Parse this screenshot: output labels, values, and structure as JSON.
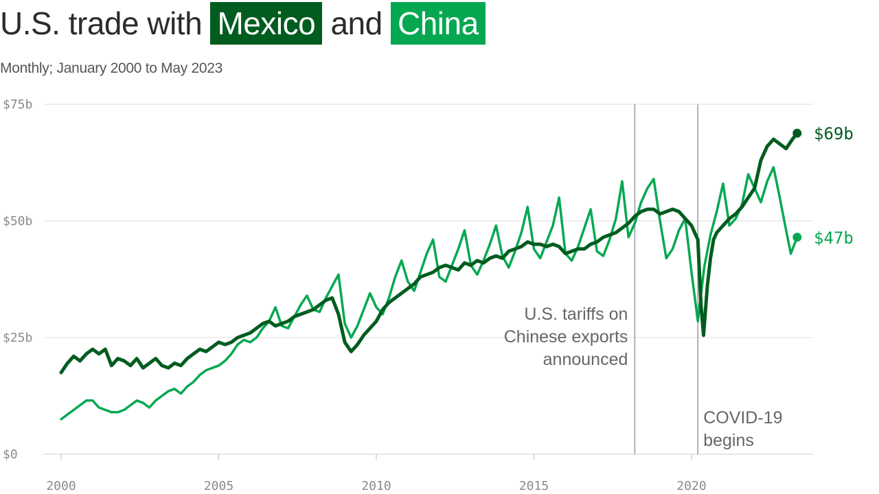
{
  "title": {
    "part1": "U.S. trade with",
    "mexico": "Mexico",
    "part2": "and",
    "china": "China"
  },
  "subtitle": "Monthly; January 2000 to May 2023",
  "colors": {
    "mexico": "#005c1f",
    "china": "#05a851",
    "grid": "#dddddd",
    "annotation_line": "#9a9a9a",
    "text": "#2b2b2b"
  },
  "chart_data": {
    "type": "line",
    "x_unit": "year",
    "xlim": [
      2000,
      2023.42
    ],
    "ylim": [
      0,
      75
    ],
    "grid": "horizontal",
    "y_ticks": [
      {
        "value": 0,
        "label": "$0"
      },
      {
        "value": 25,
        "label": "$25b"
      },
      {
        "value": 50,
        "label": "$50b"
      },
      {
        "value": 75,
        "label": "$75b"
      }
    ],
    "x_ticks": [
      {
        "value": 2000,
        "label": "2000"
      },
      {
        "value": 2005,
        "label": "2005"
      },
      {
        "value": 2010,
        "label": "2010"
      },
      {
        "value": 2015,
        "label": "2015"
      },
      {
        "value": 2020,
        "label": "2020"
      }
    ],
    "series": [
      {
        "key": "mexico",
        "name": "Mexico",
        "color": "#005c1f",
        "end_label": "$69b",
        "points": [
          [
            2000.0,
            17.5
          ],
          [
            2000.2,
            19.5
          ],
          [
            2000.4,
            21.0
          ],
          [
            2000.6,
            20.0
          ],
          [
            2000.8,
            21.5
          ],
          [
            2001.0,
            22.5
          ],
          [
            2001.2,
            21.5
          ],
          [
            2001.4,
            22.5
          ],
          [
            2001.6,
            19.0
          ],
          [
            2001.8,
            20.5
          ],
          [
            2002.0,
            20.0
          ],
          [
            2002.2,
            19.0
          ],
          [
            2002.4,
            20.5
          ],
          [
            2002.6,
            18.5
          ],
          [
            2002.8,
            19.5
          ],
          [
            2003.0,
            20.5
          ],
          [
            2003.2,
            19.0
          ],
          [
            2003.4,
            18.5
          ],
          [
            2003.6,
            19.5
          ],
          [
            2003.8,
            19.0
          ],
          [
            2004.0,
            20.5
          ],
          [
            2004.2,
            21.5
          ],
          [
            2004.4,
            22.5
          ],
          [
            2004.6,
            22.0
          ],
          [
            2004.8,
            23.0
          ],
          [
            2005.0,
            24.0
          ],
          [
            2005.2,
            23.5
          ],
          [
            2005.4,
            24.0
          ],
          [
            2005.6,
            25.0
          ],
          [
            2005.8,
            25.5
          ],
          [
            2006.0,
            26.0
          ],
          [
            2006.2,
            27.0
          ],
          [
            2006.4,
            28.0
          ],
          [
            2006.6,
            28.5
          ],
          [
            2006.8,
            27.5
          ],
          [
            2007.0,
            28.0
          ],
          [
            2007.2,
            28.5
          ],
          [
            2007.4,
            29.5
          ],
          [
            2007.6,
            30.0
          ],
          [
            2007.8,
            30.5
          ],
          [
            2008.0,
            31.0
          ],
          [
            2008.2,
            32.0
          ],
          [
            2008.4,
            33.0
          ],
          [
            2008.6,
            33.5
          ],
          [
            2008.8,
            30.0
          ],
          [
            2009.0,
            24.0
          ],
          [
            2009.2,
            22.0
          ],
          [
            2009.4,
            23.5
          ],
          [
            2009.6,
            25.5
          ],
          [
            2009.8,
            27.0
          ],
          [
            2010.0,
            28.5
          ],
          [
            2010.2,
            31.0
          ],
          [
            2010.4,
            32.5
          ],
          [
            2010.6,
            33.5
          ],
          [
            2010.8,
            34.5
          ],
          [
            2011.0,
            35.5
          ],
          [
            2011.2,
            36.5
          ],
          [
            2011.4,
            38.0
          ],
          [
            2011.6,
            38.5
          ],
          [
            2011.8,
            39.0
          ],
          [
            2012.0,
            40.0
          ],
          [
            2012.2,
            40.5
          ],
          [
            2012.4,
            40.0
          ],
          [
            2012.6,
            39.5
          ],
          [
            2012.8,
            41.0
          ],
          [
            2013.0,
            40.5
          ],
          [
            2013.2,
            41.5
          ],
          [
            2013.4,
            41.0
          ],
          [
            2013.6,
            42.0
          ],
          [
            2013.8,
            42.5
          ],
          [
            2014.0,
            42.0
          ],
          [
            2014.2,
            43.5
          ],
          [
            2014.4,
            44.0
          ],
          [
            2014.6,
            44.5
          ],
          [
            2014.8,
            45.5
          ],
          [
            2015.0,
            45.0
          ],
          [
            2015.2,
            45.0
          ],
          [
            2015.4,
            44.5
          ],
          [
            2015.6,
            45.0
          ],
          [
            2015.8,
            44.5
          ],
          [
            2016.0,
            43.0
          ],
          [
            2016.2,
            43.5
          ],
          [
            2016.4,
            44.0
          ],
          [
            2016.6,
            44.0
          ],
          [
            2016.8,
            45.0
          ],
          [
            2017.0,
            45.5
          ],
          [
            2017.2,
            46.5
          ],
          [
            2017.4,
            47.0
          ],
          [
            2017.6,
            47.5
          ],
          [
            2017.8,
            48.5
          ],
          [
            2018.0,
            49.5
          ],
          [
            2018.2,
            51.0
          ],
          [
            2018.4,
            52.0
          ],
          [
            2018.6,
            52.5
          ],
          [
            2018.8,
            52.5
          ],
          [
            2019.0,
            51.5
          ],
          [
            2019.2,
            52.0
          ],
          [
            2019.4,
            52.5
          ],
          [
            2019.6,
            52.0
          ],
          [
            2019.8,
            50.5
          ],
          [
            2020.0,
            49.0
          ],
          [
            2020.2,
            46.0
          ],
          [
            2020.3,
            32.0
          ],
          [
            2020.38,
            25.5
          ],
          [
            2020.5,
            36.0
          ],
          [
            2020.6,
            42.0
          ],
          [
            2020.7,
            46.0
          ],
          [
            2020.8,
            47.5
          ],
          [
            2021.0,
            49.0
          ],
          [
            2021.2,
            50.5
          ],
          [
            2021.4,
            51.5
          ],
          [
            2021.6,
            53.0
          ],
          [
            2021.8,
            55.0
          ],
          [
            2022.0,
            57.0
          ],
          [
            2022.2,
            63.0
          ],
          [
            2022.4,
            66.0
          ],
          [
            2022.6,
            67.5
          ],
          [
            2022.8,
            66.5
          ],
          [
            2023.0,
            65.5
          ],
          [
            2023.2,
            67.5
          ],
          [
            2023.35,
            68.8
          ]
        ]
      },
      {
        "key": "china",
        "name": "China",
        "color": "#05a851",
        "end_label": "$47b",
        "points": [
          [
            2000.0,
            7.5
          ],
          [
            2000.2,
            8.5
          ],
          [
            2000.4,
            9.5
          ],
          [
            2000.6,
            10.5
          ],
          [
            2000.8,
            11.5
          ],
          [
            2001.0,
            11.5
          ],
          [
            2001.2,
            10.0
          ],
          [
            2001.4,
            9.5
          ],
          [
            2001.6,
            9.0
          ],
          [
            2001.8,
            9.0
          ],
          [
            2002.0,
            9.5
          ],
          [
            2002.2,
            10.5
          ],
          [
            2002.4,
            11.5
          ],
          [
            2002.6,
            11.0
          ],
          [
            2002.8,
            10.0
          ],
          [
            2003.0,
            11.5
          ],
          [
            2003.2,
            12.5
          ],
          [
            2003.4,
            13.5
          ],
          [
            2003.6,
            14.0
          ],
          [
            2003.8,
            13.0
          ],
          [
            2004.0,
            14.5
          ],
          [
            2004.2,
            15.5
          ],
          [
            2004.4,
            17.0
          ],
          [
            2004.6,
            18.0
          ],
          [
            2004.8,
            18.5
          ],
          [
            2005.0,
            19.0
          ],
          [
            2005.2,
            20.0
          ],
          [
            2005.4,
            21.5
          ],
          [
            2005.6,
            23.5
          ],
          [
            2005.8,
            24.5
          ],
          [
            2006.0,
            24.0
          ],
          [
            2006.2,
            25.0
          ],
          [
            2006.4,
            27.0
          ],
          [
            2006.6,
            28.5
          ],
          [
            2006.8,
            31.5
          ],
          [
            2007.0,
            27.5
          ],
          [
            2007.2,
            27.0
          ],
          [
            2007.4,
            29.5
          ],
          [
            2007.6,
            32.0
          ],
          [
            2007.8,
            34.0
          ],
          [
            2008.0,
            31.0
          ],
          [
            2008.2,
            30.5
          ],
          [
            2008.4,
            33.5
          ],
          [
            2008.6,
            36.0
          ],
          [
            2008.8,
            38.5
          ],
          [
            2009.0,
            28.0
          ],
          [
            2009.2,
            25.0
          ],
          [
            2009.4,
            27.5
          ],
          [
            2009.6,
            31.0
          ],
          [
            2009.8,
            34.5
          ],
          [
            2010.0,
            31.5
          ],
          [
            2010.2,
            30.0
          ],
          [
            2010.4,
            33.5
          ],
          [
            2010.6,
            38.0
          ],
          [
            2010.8,
            41.5
          ],
          [
            2011.0,
            37.0
          ],
          [
            2011.2,
            35.0
          ],
          [
            2011.4,
            39.0
          ],
          [
            2011.6,
            43.0
          ],
          [
            2011.8,
            46.0
          ],
          [
            2012.0,
            38.0
          ],
          [
            2012.2,
            37.0
          ],
          [
            2012.4,
            40.5
          ],
          [
            2012.6,
            44.0
          ],
          [
            2012.8,
            48.0
          ],
          [
            2013.0,
            40.5
          ],
          [
            2013.2,
            38.5
          ],
          [
            2013.4,
            41.5
          ],
          [
            2013.6,
            45.0
          ],
          [
            2013.8,
            49.0
          ],
          [
            2014.0,
            42.5
          ],
          [
            2014.2,
            40.0
          ],
          [
            2014.4,
            43.5
          ],
          [
            2014.6,
            47.5
          ],
          [
            2014.8,
            53.0
          ],
          [
            2015.0,
            44.0
          ],
          [
            2015.2,
            42.0
          ],
          [
            2015.4,
            45.5
          ],
          [
            2015.6,
            49.0
          ],
          [
            2015.8,
            55.0
          ],
          [
            2016.0,
            43.0
          ],
          [
            2016.2,
            41.5
          ],
          [
            2016.4,
            44.5
          ],
          [
            2016.6,
            48.5
          ],
          [
            2016.8,
            52.5
          ],
          [
            2017.0,
            43.5
          ],
          [
            2017.2,
            42.5
          ],
          [
            2017.4,
            46.0
          ],
          [
            2017.6,
            50.5
          ],
          [
            2017.8,
            58.5
          ],
          [
            2018.0,
            46.5
          ],
          [
            2018.2,
            49.5
          ],
          [
            2018.4,
            54.0
          ],
          [
            2018.6,
            57.0
          ],
          [
            2018.8,
            59.0
          ],
          [
            2019.0,
            50.0
          ],
          [
            2019.2,
            42.0
          ],
          [
            2019.4,
            44.0
          ],
          [
            2019.6,
            48.0
          ],
          [
            2019.8,
            50.5
          ],
          [
            2020.0,
            39.0
          ],
          [
            2020.2,
            28.5
          ],
          [
            2020.4,
            40.0
          ],
          [
            2020.6,
            47.0
          ],
          [
            2020.8,
            52.0
          ],
          [
            2021.0,
            58.0
          ],
          [
            2021.2,
            49.0
          ],
          [
            2021.4,
            50.5
          ],
          [
            2021.6,
            53.5
          ],
          [
            2021.8,
            60.0
          ],
          [
            2022.0,
            57.0
          ],
          [
            2022.2,
            54.0
          ],
          [
            2022.4,
            58.5
          ],
          [
            2022.6,
            61.5
          ],
          [
            2022.8,
            55.0
          ],
          [
            2023.0,
            48.0
          ],
          [
            2023.15,
            43.0
          ],
          [
            2023.35,
            46.5
          ]
        ]
      }
    ],
    "annotations": [
      {
        "key": "tariffs",
        "x": 2018.2,
        "lines": [
          "U.S. tariffs on",
          "Chinese exports",
          "announced"
        ],
        "align": "left-of-line"
      },
      {
        "key": "covid",
        "x": 2020.2,
        "lines": [
          "COVID-19",
          "begins"
        ],
        "align": "right-of-line"
      }
    ]
  }
}
